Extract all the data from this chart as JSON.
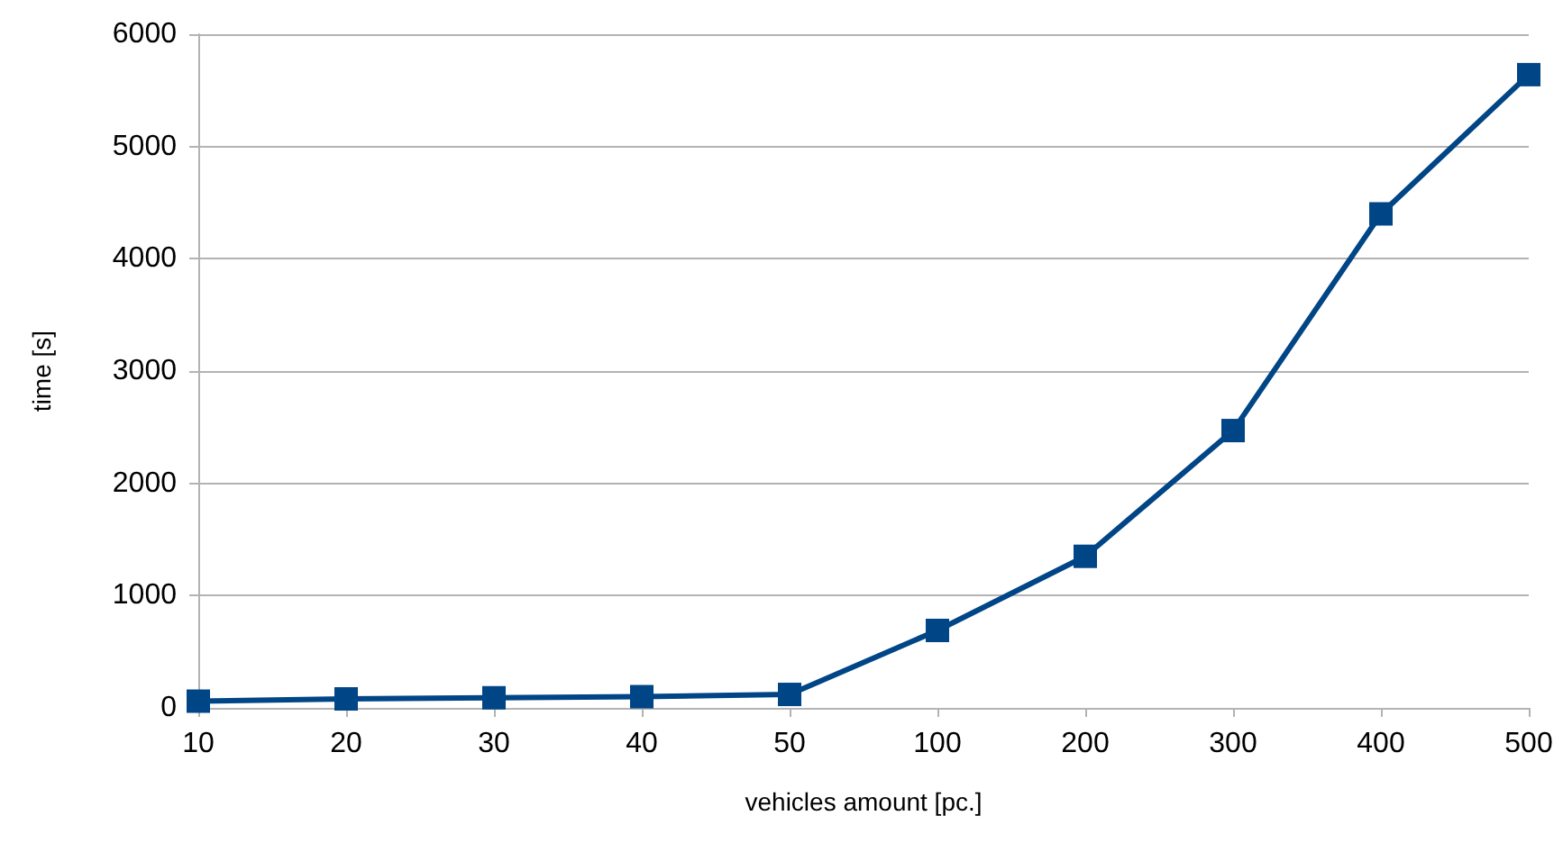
{
  "chart_data": {
    "type": "line",
    "xlabel": "vehicles amount [pc.]",
    "ylabel": "time [s]",
    "categories": [
      "10",
      "20",
      "30",
      "40",
      "50",
      "100",
      "200",
      "300",
      "400",
      "500"
    ],
    "series": [
      {
        "color": "#004586",
        "values": [
          60,
          80,
          90,
          100,
          120,
          690,
          1350,
          2470,
          4400,
          5640
        ]
      }
    ],
    "ylim": [
      0,
      6000
    ],
    "yticks": [
      0,
      1000,
      2000,
      3000,
      4000,
      5000,
      6000
    ],
    "grid": "y",
    "marker": "square",
    "line_style": "solid"
  }
}
